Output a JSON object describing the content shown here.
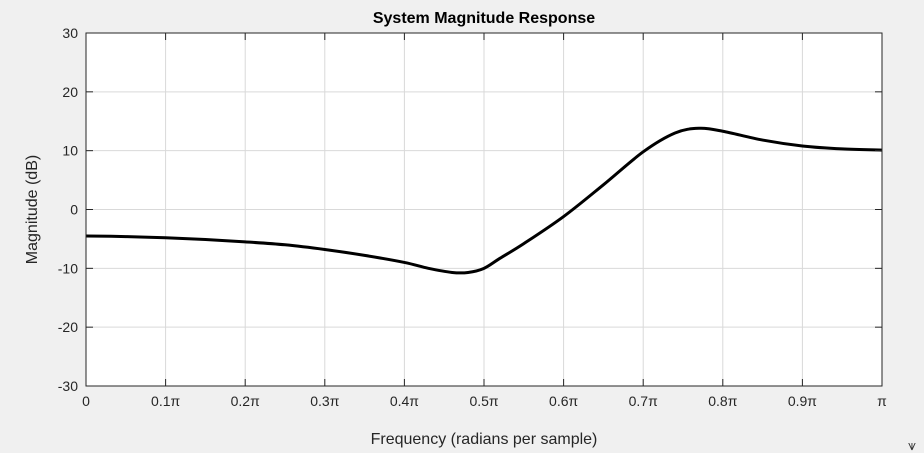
{
  "chart_data": {
    "type": "line",
    "title": "System Magnitude Response",
    "xlabel": "Frequency  (radians per sample)",
    "ylabel": "Magnitude (dB)",
    "xlim": [
      0,
      1
    ],
    "ylim": [
      -30,
      30
    ],
    "grid": true,
    "xticks": [
      0,
      0.1,
      0.2,
      0.3,
      0.4,
      0.5,
      0.6,
      0.7,
      0.8,
      0.9,
      1.0
    ],
    "xtick_labels": [
      "0",
      "0.1π",
      "0.2π",
      "0.3π",
      "0.4π",
      "0.5π",
      "0.6π",
      "0.7π",
      "0.8π",
      "0.9π",
      "π"
    ],
    "yticks": [
      -30,
      -20,
      -10,
      0,
      10,
      20,
      30
    ],
    "ytick_labels": [
      "-30",
      "-20",
      "-10",
      "0",
      "10",
      "20",
      "30"
    ],
    "series": [
      {
        "color": "#000000",
        "x": [
          0,
          0.05,
          0.1,
          0.15,
          0.2,
          0.25,
          0.3,
          0.35,
          0.4,
          0.43,
          0.46,
          0.48,
          0.5,
          0.52,
          0.55,
          0.6,
          0.65,
          0.7,
          0.74,
          0.77,
          0.8,
          0.85,
          0.9,
          0.95,
          1.0
        ],
        "y": [
          -4.5,
          -4.6,
          -4.8,
          -5.1,
          -5.5,
          -6.0,
          -6.8,
          -7.8,
          -9.0,
          -10.0,
          -10.7,
          -10.7,
          -10.0,
          -8.3,
          -5.8,
          -1.2,
          4.2,
          9.8,
          13.0,
          13.8,
          13.3,
          11.8,
          10.8,
          10.3,
          10.1
        ]
      }
    ]
  },
  "corner_icon": "filter-funnel-icon",
  "corner_glyph": "⩛"
}
